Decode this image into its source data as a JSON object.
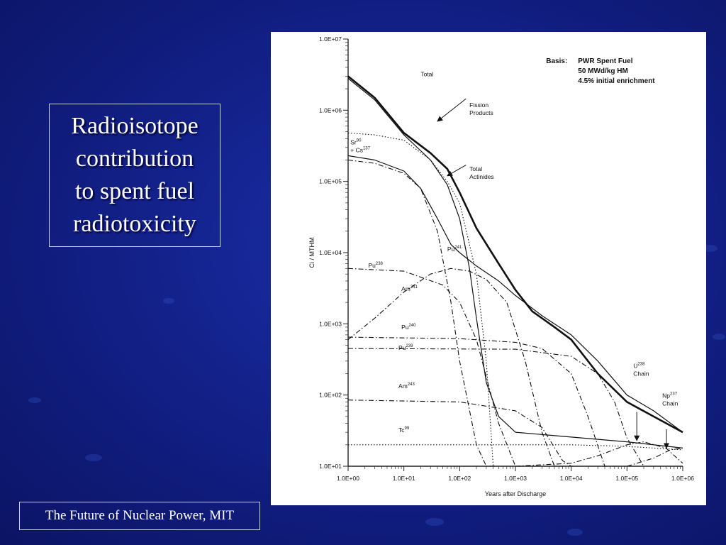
{
  "slide": {
    "title": "Radioisotope\ncontribution\nto spent fuel\nradiotoxicity",
    "footer": "The Future of Nuclear Power, MIT"
  },
  "colors": {
    "background": "#13218a",
    "text": "#ffffff",
    "chart_bg": "#ffffff",
    "ink": "#111111"
  },
  "chart_data": {
    "type": "line",
    "xlabel": "Years after Discharge",
    "ylabel": "Ci / MTHM",
    "xscale": "log",
    "yscale": "log",
    "xlim": [
      1,
      1000000
    ],
    "ylim": [
      10,
      10000000
    ],
    "x_ticks": [
      "1.0E+00",
      "1.0E+01",
      "1.0E+02",
      "1.0E+03",
      "1.0E+04",
      "1.0E+05",
      "1.0E+06"
    ],
    "y_ticks": [
      "1.0E+01",
      "1.0E+02",
      "1.0E+03",
      "1.0E+04",
      "1.0E+05",
      "1.0E+06",
      "1.0E+07"
    ],
    "basis": {
      "label": "Basis:",
      "lines": [
        "PWR Spent Fuel",
        "50 MWd/kg HM",
        "4.5% initial enrichment"
      ]
    },
    "series": [
      {
        "name": "Total",
        "style": "solid-thick",
        "x": [
          1,
          3,
          10,
          30,
          60,
          100,
          200,
          500,
          1000,
          2000,
          5000,
          10000,
          30000,
          100000,
          300000,
          1000000
        ],
        "y": [
          3000000,
          1500000,
          480000,
          250000,
          150000,
          70000,
          22000,
          7000,
          3000,
          1500,
          900,
          600,
          200,
          80,
          50,
          30
        ]
      },
      {
        "name": "Fission Products",
        "style": "solid",
        "x": [
          1,
          3,
          10,
          30,
          60,
          100,
          150,
          200,
          300,
          500,
          1000,
          100000,
          1000000
        ],
        "y": [
          2800000,
          1400000,
          450000,
          200000,
          90000,
          30000,
          6000,
          1200,
          150,
          50,
          30,
          22,
          18
        ]
      },
      {
        "name": "Sr90 + Cs137",
        "style": "dotted",
        "x": [
          1,
          3,
          10,
          30,
          60,
          100,
          200,
          300,
          400
        ],
        "y": [
          480000,
          450000,
          380000,
          200000,
          100000,
          50000,
          5000,
          300,
          10
        ]
      },
      {
        "name": "Total Actinides",
        "style": "solid",
        "x": [
          1,
          3,
          10,
          20,
          40,
          70,
          100,
          200,
          500,
          1000,
          3000,
          10000,
          30000,
          100000,
          300000,
          1000000
        ],
        "y": [
          230000,
          200000,
          140000,
          80000,
          30000,
          13000,
          10000,
          6500,
          4000,
          2500,
          1300,
          700,
          300,
          100,
          60,
          30
        ]
      },
      {
        "name": "Pu241",
        "style": "dash-dot",
        "x": [
          1,
          3,
          10,
          20,
          40,
          70,
          100,
          200,
          300,
          500
        ],
        "y": [
          200000,
          180000,
          130000,
          80000,
          20000,
          2000,
          300,
          20,
          10,
          10
        ]
      },
      {
        "name": "Pu238",
        "style": "dash-dot",
        "x": [
          1,
          10,
          50,
          100,
          200,
          500,
          1000,
          1500
        ],
        "y": [
          6000,
          5500,
          3500,
          2000,
          600,
          40,
          10,
          10
        ]
      },
      {
        "name": "Am241",
        "style": "dash-dot",
        "x": [
          1,
          3,
          10,
          30,
          70,
          150,
          300,
          700,
          1500,
          3000,
          5000,
          8000
        ],
        "y": [
          600,
          1200,
          2800,
          5000,
          6000,
          5500,
          4200,
          2000,
          300,
          30,
          10,
          10
        ]
      },
      {
        "name": "Pu240",
        "style": "dash-dot",
        "x": [
          1,
          100,
          1000,
          3000,
          10000,
          20000,
          40000,
          70000
        ],
        "y": [
          650,
          620,
          550,
          450,
          200,
          50,
          10,
          10
        ]
      },
      {
        "name": "Pu239",
        "style": "dash-dot",
        "x": [
          1,
          1000,
          10000,
          30000,
          60000,
          100000,
          200000
        ],
        "y": [
          450,
          440,
          350,
          200,
          80,
          25,
          10
        ]
      },
      {
        "name": "Am243",
        "style": "dash-dot",
        "x": [
          1,
          100,
          1000,
          3000,
          7000,
          10000,
          13000
        ],
        "y": [
          85,
          80,
          60,
          35,
          12,
          10,
          10
        ]
      },
      {
        "name": "Tc99",
        "style": "dotted",
        "x": [
          1,
          1000,
          10000,
          100000,
          1000000
        ],
        "y": [
          20,
          20,
          20,
          19,
          17
        ]
      },
      {
        "name": "U238 Chain",
        "style": "dash-dot",
        "x": [
          1000,
          10000,
          30000,
          100000,
          200000,
          500000,
          1000000
        ],
        "y": [
          10,
          11,
          14,
          20,
          22,
          18,
          11
        ]
      },
      {
        "name": "Np237 Chain",
        "style": "dash-dot",
        "x": [
          100000,
          300000,
          600000,
          1000000
        ],
        "y": [
          10,
          13,
          17,
          18
        ]
      }
    ],
    "annotations": [
      {
        "lines": [
          "Total"
        ],
        "x": 20,
        "y": 3000000
      },
      {
        "lines": [
          "Fission",
          "Products"
        ],
        "x": 150,
        "y": 1100000
      },
      {
        "lines": [
          "Sr",
          "+ Cs"
        ],
        "sups": [
          "90",
          "137"
        ],
        "x": 1.1,
        "y": 330000
      },
      {
        "lines": [
          "Total",
          "Actinides"
        ],
        "x": 150,
        "y": 140000
      },
      {
        "lines": [
          "Pu"
        ],
        "sups": [
          "241"
        ],
        "x": 60,
        "y": 10500
      },
      {
        "lines": [
          "Pu"
        ],
        "sups": [
          "238"
        ],
        "x": 2.3,
        "y": 6200
      },
      {
        "lines": [
          "Am"
        ],
        "sups": [
          "241"
        ],
        "x": 9,
        "y": 2900
      },
      {
        "lines": [
          "Pu"
        ],
        "sups": [
          "240"
        ],
        "x": 9,
        "y": 840
      },
      {
        "lines": [
          "Pu"
        ],
        "sups": [
          "239"
        ],
        "x": 8,
        "y": 430
      },
      {
        "lines": [
          "Am"
        ],
        "sups": [
          "243"
        ],
        "x": 8,
        "y": 125
      },
      {
        "lines": [
          "Tc"
        ],
        "sups": [
          "99"
        ],
        "x": 8,
        "y": 30
      },
      {
        "lines": [
          "U",
          "Chain"
        ],
        "sups": [
          "238"
        ],
        "x": 130000,
        "y": 240
      },
      {
        "lines": [
          "Np",
          "Chain"
        ],
        "sups": [
          "237"
        ],
        "x": 430000,
        "y": 92
      }
    ],
    "arrows": [
      {
        "from": [
          130,
          1450000
        ],
        "to": [
          40,
          700000
        ]
      },
      {
        "from": [
          130,
          170000
        ],
        "to": [
          60,
          120000
        ]
      },
      {
        "from": [
          150000,
          58
        ],
        "to": [
          150000,
          23
        ]
      },
      {
        "from": [
          510000,
          33
        ],
        "to": [
          510000,
          18
        ]
      }
    ]
  }
}
